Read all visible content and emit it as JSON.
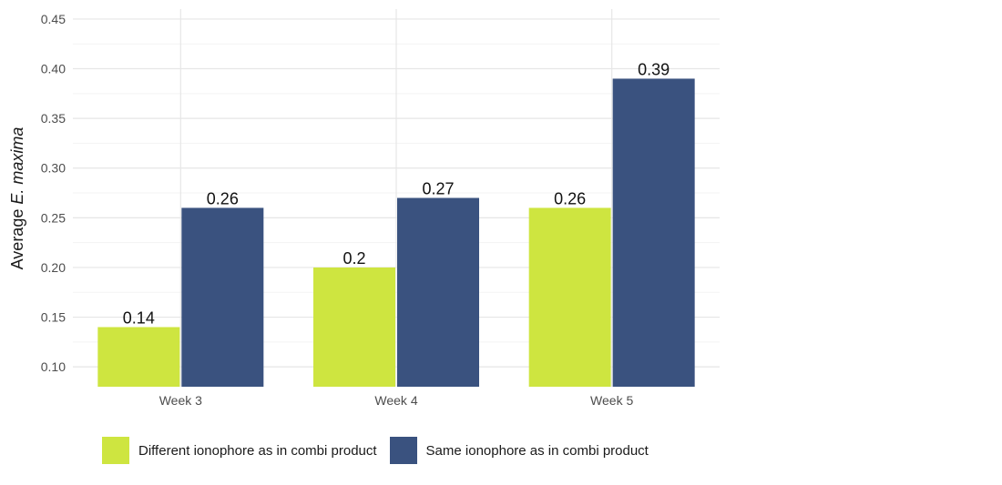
{
  "chart_data": {
    "type": "bar",
    "categories": [
      "Week 3",
      "Week 4",
      "Week 5"
    ],
    "series": [
      {
        "name": "Different ionophore as in combi product",
        "values": [
          0.14,
          0.2,
          0.26
        ],
        "color": "#cee540"
      },
      {
        "name": "Same ionophore as in combi product",
        "values": [
          0.26,
          0.27,
          0.39
        ],
        "color": "#3a527f"
      }
    ],
    "data_labels": [
      [
        "0.14",
        "0.2",
        "0.26"
      ],
      [
        "0.26",
        "0.27",
        "0.39"
      ]
    ],
    "title": "",
    "xlabel": "",
    "ylabel": {
      "prefix": "Average ",
      "italic": "E. maxima"
    },
    "ylim": [
      0.08,
      0.46
    ],
    "yticks": [
      0.1,
      0.15,
      0.2,
      0.25,
      0.3,
      0.35,
      0.4,
      0.45
    ],
    "ytick_labels": [
      "0.10",
      "0.15",
      "0.20",
      "0.25",
      "0.30",
      "0.35",
      "0.40",
      "0.45"
    ],
    "grid": true,
    "legend_position": "bottom"
  }
}
